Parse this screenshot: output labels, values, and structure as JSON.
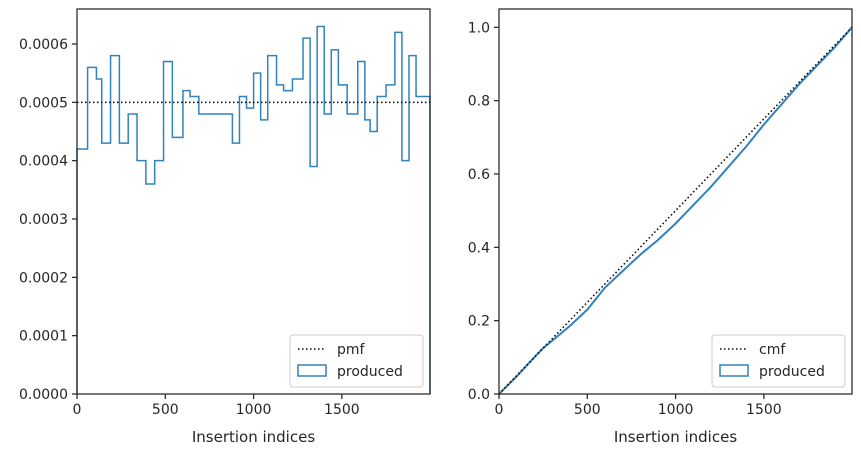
{
  "chart_data": [
    {
      "type": "step",
      "xlabel": "Insertion indices",
      "xlim": [
        0,
        1999
      ],
      "ylim": [
        0,
        0.00066
      ],
      "xticks": [
        0,
        500,
        1000,
        1500
      ],
      "xtick_labels": [
        "0",
        "500",
        "1000",
        "1500"
      ],
      "yticks": [
        0,
        0.0001,
        0.0002,
        0.0003,
        0.0004,
        0.0005,
        0.0006
      ],
      "ytick_labels": [
        "0.0000",
        "0.0001",
        "0.0002",
        "0.0003",
        "0.0004",
        "0.0005",
        "0.0006"
      ],
      "legend_position": "lower right",
      "pmf": {
        "name": "pmf",
        "value": 0.0005,
        "color": "#000000",
        "style": "dotted"
      },
      "produced": {
        "name": "produced",
        "color": "#3182bd",
        "bin_edges": [
          0,
          60,
          110,
          140,
          190,
          240,
          290,
          340,
          390,
          440,
          490,
          540,
          600,
          640,
          690,
          760,
          840,
          880,
          920,
          960,
          1000,
          1040,
          1080,
          1130,
          1170,
          1220,
          1280,
          1320,
          1360,
          1400,
          1440,
          1480,
          1530,
          1590,
          1630,
          1660,
          1700,
          1750,
          1800,
          1840,
          1880,
          1920,
          1970,
          1999
        ],
        "values": [
          0.00042,
          0.00056,
          0.00054,
          0.00043,
          0.00058,
          0.00043,
          0.00048,
          0.0004,
          0.00036,
          0.0004,
          0.00057,
          0.00044,
          0.00052,
          0.00051,
          0.00048,
          0.00048,
          0.00048,
          0.00043,
          0.00051,
          0.00049,
          0.00055,
          0.00047,
          0.00058,
          0.00053,
          0.00052,
          0.00054,
          0.00061,
          0.00039,
          0.00063,
          0.00048,
          0.00059,
          0.00053,
          0.00048,
          0.00057,
          0.00047,
          0.00045,
          0.00051,
          0.00053,
          0.00062,
          0.0004,
          0.00058,
          0.00051,
          0.00051
        ]
      }
    },
    {
      "type": "line",
      "xlabel": "Insertion indices",
      "xlim": [
        0,
        1999
      ],
      "ylim": [
        0,
        1.05
      ],
      "xticks": [
        0,
        500,
        1000,
        1500
      ],
      "xtick_labels": [
        "0",
        "500",
        "1000",
        "1500"
      ],
      "yticks": [
        0,
        0.2,
        0.4,
        0.6,
        0.8,
        1.0
      ],
      "ytick_labels": [
        "0.0",
        "0.2",
        "0.4",
        "0.6",
        "0.8",
        "1.0"
      ],
      "legend_position": "lower right",
      "cmf": {
        "name": "cmf",
        "x": [
          0,
          1999
        ],
        "y": [
          0,
          1.0
        ],
        "color": "#000000",
        "style": "dotted"
      },
      "produced": {
        "name": "produced",
        "color": "#3182bd",
        "x": [
          0,
          100,
          200,
          250,
          300,
          400,
          500,
          550,
          600,
          700,
          800,
          900,
          1000,
          1100,
          1200,
          1300,
          1400,
          1500,
          1600,
          1700,
          1800,
          1900,
          1999
        ],
        "y": [
          0,
          0.048,
          0.1,
          0.125,
          0.145,
          0.185,
          0.23,
          0.26,
          0.29,
          0.335,
          0.38,
          0.42,
          0.465,
          0.515,
          0.565,
          0.62,
          0.675,
          0.735,
          0.79,
          0.845,
          0.895,
          0.945,
          1.0
        ]
      }
    }
  ]
}
